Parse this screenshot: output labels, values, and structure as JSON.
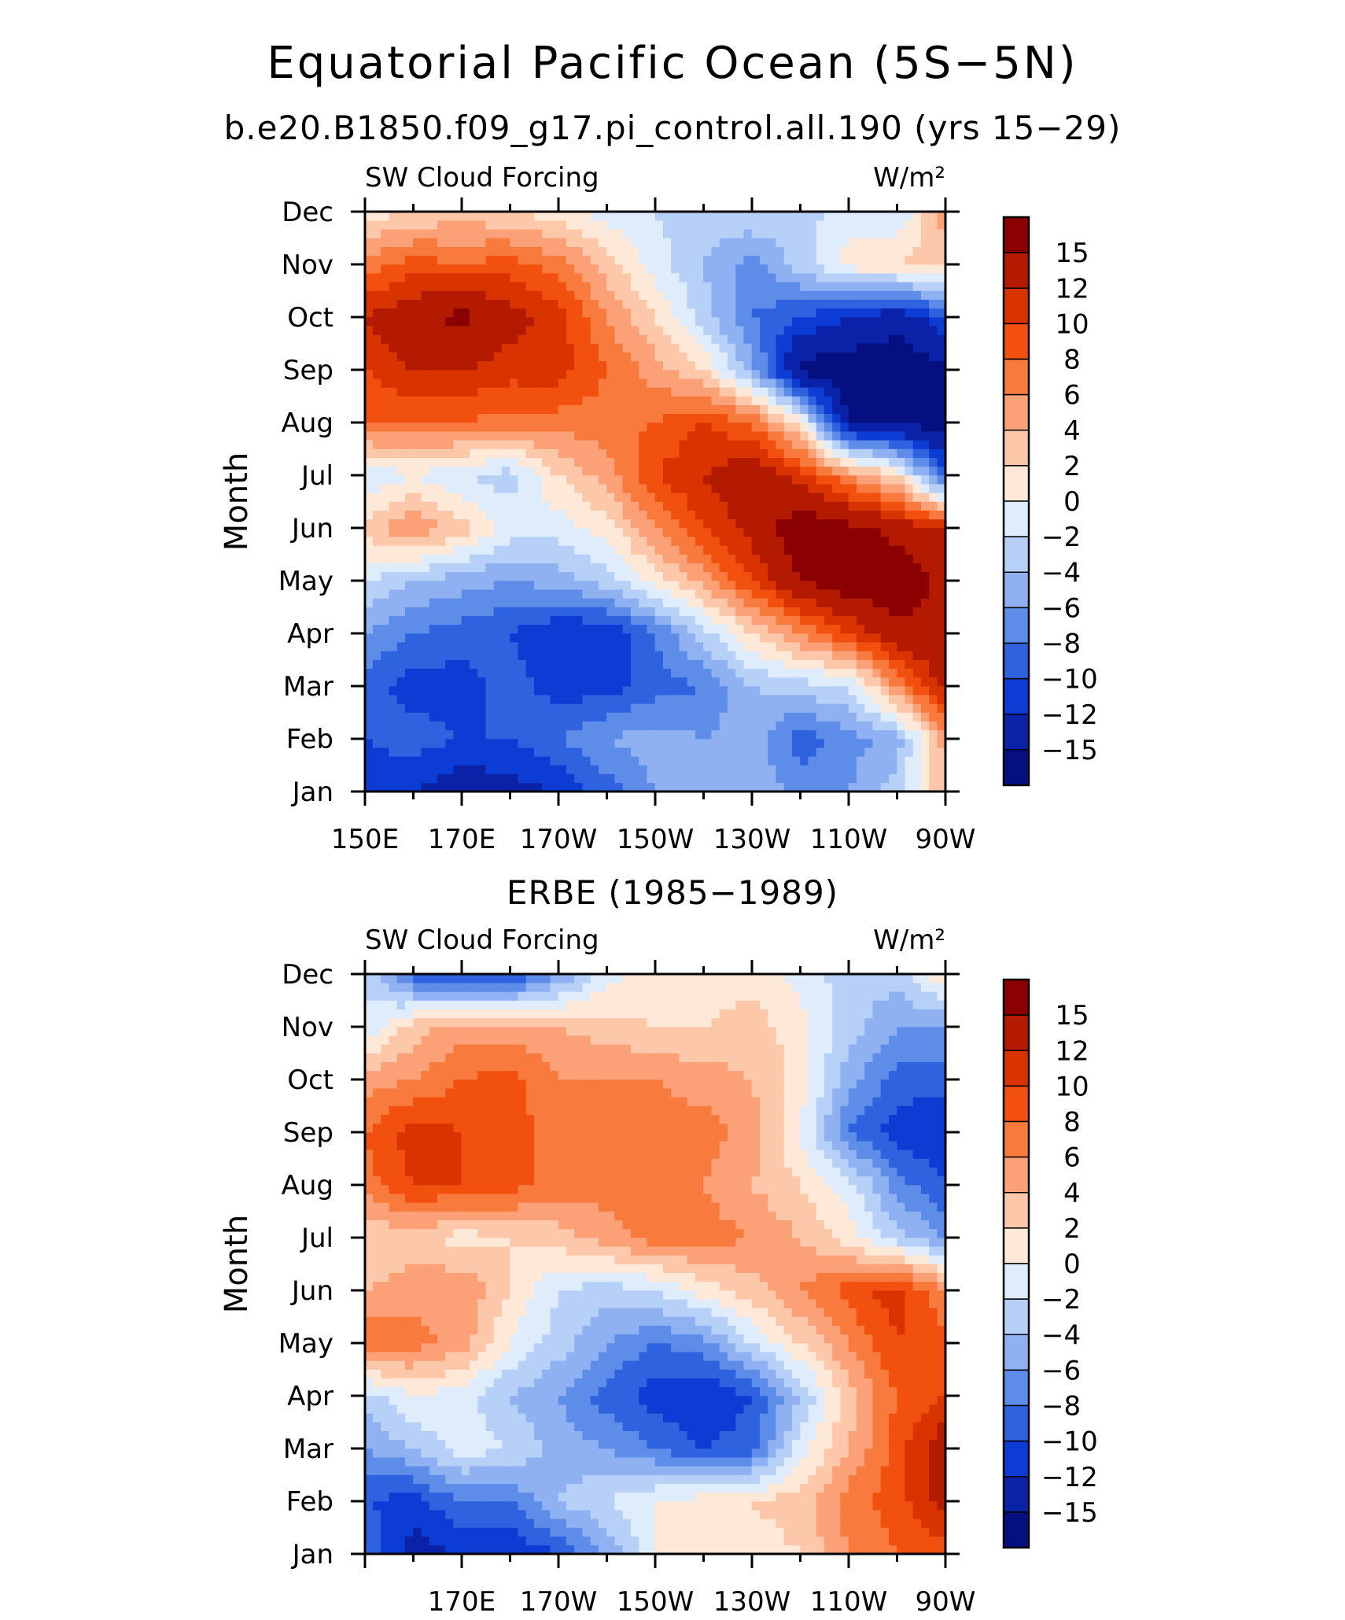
{
  "title": "Equatorial Pacific Ocean (5S−5N)",
  "subtitle_top": "b.e20.B1850.f09_g17.pi_control.all.190 (yrs 15−29)",
  "subtitle_bottom": "ERBE (1985−1989)",
  "colorbar": {
    "levels": [
      "15",
      "12",
      "10",
      "8",
      "6",
      "4",
      "2",
      "0",
      "−2",
      "−4",
      "−6",
      "−8",
      "−10",
      "−12",
      "−15"
    ],
    "colors": [
      "#8b0000",
      "#b31a00",
      "#d93300",
      "#f2500f",
      "#f97a3d",
      "#fca077",
      "#fdc7a9",
      "#fee9d9",
      "#deecfb",
      "#b7d0f7",
      "#8fb1f2",
      "#5e8ce9",
      "#2f62de",
      "#0c3cd4",
      "#0a22a8",
      "#050f80"
    ]
  },
  "chart_data": [
    {
      "type": "heatmap",
      "left_label": "SW Cloud Forcing",
      "right_label": "W/m²",
      "ylabel": "Month",
      "xticks": [
        "150E",
        "170E",
        "170W",
        "150W",
        "130W",
        "110W",
        "90W"
      ],
      "yticks": [
        "Jan",
        "Feb",
        "Mar",
        "Apr",
        "May",
        "Jun",
        "Jul",
        "Aug",
        "Sep",
        "Oct",
        "Nov",
        "Dec"
      ],
      "xlim": [
        150,
        270
      ],
      "x_units": "degrees longitude east",
      "ylim": [
        1,
        12
      ],
      "grid_x": [
        150,
        160,
        170,
        180,
        190,
        200,
        210,
        220,
        230,
        240,
        250,
        260,
        270
      ],
      "grid_y": [
        1,
        2,
        3,
        4,
        5,
        6,
        7,
        8,
        9,
        10,
        11,
        12
      ],
      "values": [
        [
          -11,
          -12,
          -14,
          -13,
          -12,
          -9,
          -6,
          -5,
          -4,
          -7,
          -6,
          -3,
          4
        ],
        [
          -10,
          -9,
          -10,
          -10,
          -8,
          -6,
          -5,
          -6,
          -5,
          -9,
          -7,
          -5,
          5
        ],
        [
          -9,
          -11,
          -11,
          -9,
          -11,
          -11,
          -9,
          -8,
          -4,
          -3,
          -2,
          6,
          13
        ],
        [
          -6,
          -8,
          -9,
          -10,
          -12,
          -12,
          -8,
          -3,
          2,
          6,
          10,
          14,
          15
        ],
        [
          -2,
          -4,
          -5,
          -6,
          -5,
          -3,
          1,
          5,
          10,
          15,
          17,
          17,
          14
        ],
        [
          3,
          6,
          3,
          -1,
          -1,
          1,
          6,
          10,
          13,
          17,
          16,
          14,
          12
        ],
        [
          -2,
          0,
          -2,
          -3,
          2,
          5,
          10,
          12,
          14,
          11,
          6,
          2,
          -10
        ],
        [
          8,
          8,
          8,
          7,
          7,
          7,
          8,
          10,
          8,
          1,
          -15,
          -16,
          -16
        ],
        [
          10,
          12,
          12,
          11,
          11,
          8,
          5,
          2,
          -5,
          -16,
          -17,
          -17,
          -16
        ],
        [
          12,
          14,
          16,
          13,
          11,
          6,
          2,
          -3,
          -8,
          -10,
          -12,
          -14,
          -10
        ],
        [
          7,
          9,
          8,
          9,
          7,
          3,
          -1,
          -4,
          -7,
          -3,
          1,
          2,
          3
        ],
        [
          1,
          2,
          3,
          2,
          1,
          -1,
          -2,
          -3,
          -2,
          -3,
          -1,
          -2,
          5
        ]
      ]
    },
    {
      "type": "heatmap",
      "left_label": "SW Cloud Forcing",
      "right_label": "W/m²",
      "ylabel": "Month",
      "xticks": [
        "170E",
        "170W",
        "150W",
        "130W",
        "110W",
        "90W"
      ],
      "yticks": [
        "Jan",
        "Feb",
        "Mar",
        "Apr",
        "May",
        "Jun",
        "Jul",
        "Aug",
        "Sep",
        "Oct",
        "Nov",
        "Dec"
      ],
      "xlim": [
        150,
        270
      ],
      "x_units": "degrees longitude east",
      "ylim": [
        1,
        12
      ],
      "grid_x": [
        150,
        160,
        170,
        180,
        190,
        200,
        210,
        220,
        230,
        240,
        250,
        260,
        270
      ],
      "grid_y": [
        1,
        2,
        3,
        4,
        5,
        6,
        7,
        8,
        9,
        10,
        11,
        12
      ],
      "values": [
        [
          -8,
          -13,
          -12,
          -12,
          -10,
          -6,
          0,
          1,
          1,
          2,
          6,
          8,
          9
        ],
        [
          -10,
          -11,
          -8,
          -8,
          -4,
          -2,
          0,
          1,
          2,
          3,
          7,
          9,
          13
        ],
        [
          -6,
          -4,
          -1,
          -2,
          -5,
          -6,
          -8,
          -10,
          -9,
          -1,
          4,
          9,
          14
        ],
        [
          -3,
          0,
          -1,
          -4,
          -6,
          -9,
          -11,
          -12,
          -10,
          -4,
          3,
          8,
          10
        ],
        [
          8,
          7,
          5,
          0,
          -3,
          -6,
          -8,
          -7,
          -2,
          2,
          6,
          10,
          9
        ],
        [
          4,
          5,
          6,
          2,
          -2,
          -3,
          -2,
          1,
          3,
          6,
          9,
          11,
          6
        ],
        [
          2,
          3,
          1,
          2,
          3,
          5,
          7,
          7,
          6,
          4,
          1,
          -3,
          -6
        ],
        [
          7,
          10,
          10,
          9,
          7,
          7,
          7,
          6,
          4,
          2,
          -1,
          -7,
          -10
        ],
        [
          8,
          11,
          10,
          9,
          7,
          6,
          7,
          7,
          5,
          0,
          -8,
          -11,
          -12
        ],
        [
          5,
          6,
          8,
          9,
          6,
          6,
          6,
          5,
          4,
          1,
          -5,
          -9,
          -9
        ],
        [
          -2,
          3,
          5,
          5,
          4,
          3,
          2,
          2,
          3,
          1,
          -3,
          -6,
          -6
        ],
        [
          -2,
          -9,
          -11,
          -11,
          -6,
          -1,
          1,
          1,
          1,
          -1,
          -3,
          -3,
          2
        ]
      ]
    }
  ]
}
